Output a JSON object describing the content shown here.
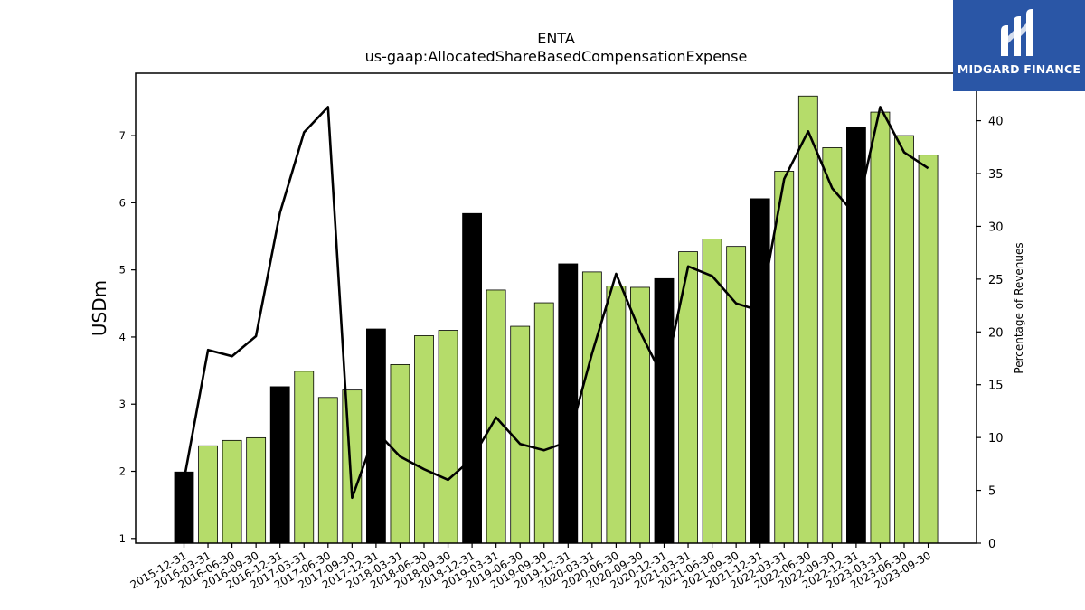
{
  "chart_data": {
    "type": "bar",
    "title": "ENTA",
    "subtitle": "us-gaap:AllocatedShareBasedCompensationExpense",
    "ylabel": "USDm",
    "y2label": "Percentage of Revenues",
    "ylim": [
      0.93,
      7.93
    ],
    "y2lim": [
      0,
      44.5
    ],
    "yticks": [
      1,
      2,
      3,
      4,
      5,
      6,
      7
    ],
    "y2ticks": [
      0,
      5,
      10,
      15,
      20,
      25,
      30,
      35,
      40
    ],
    "categories": [
      "2015-12-31",
      "2016-03-31",
      "2016-06-30",
      "2016-09-30",
      "2016-12-31",
      "2017-03-31",
      "2017-06-30",
      "2017-09-30",
      "2017-12-31",
      "2018-03-31",
      "2018-06-30",
      "2018-09-30",
      "2018-12-31",
      "2019-03-31",
      "2019-06-30",
      "2019-09-30",
      "2019-12-31",
      "2020-03-31",
      "2020-06-30",
      "2020-09-30",
      "2020-12-31",
      "2021-03-31",
      "2021-06-30",
      "2021-09-30",
      "2021-12-31",
      "2022-03-31",
      "2022-06-30",
      "2022-09-30",
      "2022-12-31",
      "2023-03-31",
      "2023-06-30",
      "2023-09-30"
    ],
    "series": [
      {
        "values": [
          1.99,
          2.38,
          2.46,
          2.5,
          3.26,
          3.49,
          3.1,
          3.21,
          4.12,
          3.59,
          4.02,
          4.1,
          5.84,
          4.7,
          4.16,
          4.51,
          5.09,
          4.97,
          4.76,
          4.74,
          4.87,
          5.27,
          5.46,
          5.35,
          6.06,
          6.47,
          7.59,
          6.82,
          7.13,
          7.35,
          7.0,
          6.71
        ],
        "colors": [
          "#000000",
          "#b5dc6a",
          "#b5dc6a",
          "#b5dc6a",
          "#000000",
          "#b5dc6a",
          "#b5dc6a",
          "#b5dc6a",
          "#000000",
          "#b5dc6a",
          "#b5dc6a",
          "#b5dc6a",
          "#000000",
          "#b5dc6a",
          "#b5dc6a",
          "#b5dc6a",
          "#000000",
          "#b5dc6a",
          "#b5dc6a",
          "#b5dc6a",
          "#000000",
          "#b5dc6a",
          "#b5dc6a",
          "#b5dc6a",
          "#000000",
          "#b5dc6a",
          "#b5dc6a",
          "#b5dc6a",
          "#000000",
          "#b5dc6a",
          "#b5dc6a",
          "#b5dc6a"
        ]
      },
      {
        "type": "line",
        "axis": "right",
        "color": "#000000",
        "values": [
          6.0,
          18.3,
          17.7,
          19.6,
          31.3,
          38.9,
          41.3,
          4.3,
          10.6,
          8.2,
          7.0,
          6.0,
          8.0,
          11.9,
          9.4,
          8.8,
          9.6,
          18.0,
          25.5,
          20.0,
          15.5,
          26.2,
          25.3,
          22.7,
          22.0,
          34.5,
          39.0,
          33.6,
          31.0,
          41.3,
          37.0,
          35.5
        ]
      }
    ],
    "grid": false
  },
  "logo": {
    "text": "MIDGARD FINANCE",
    "background": "#2a56a6"
  }
}
